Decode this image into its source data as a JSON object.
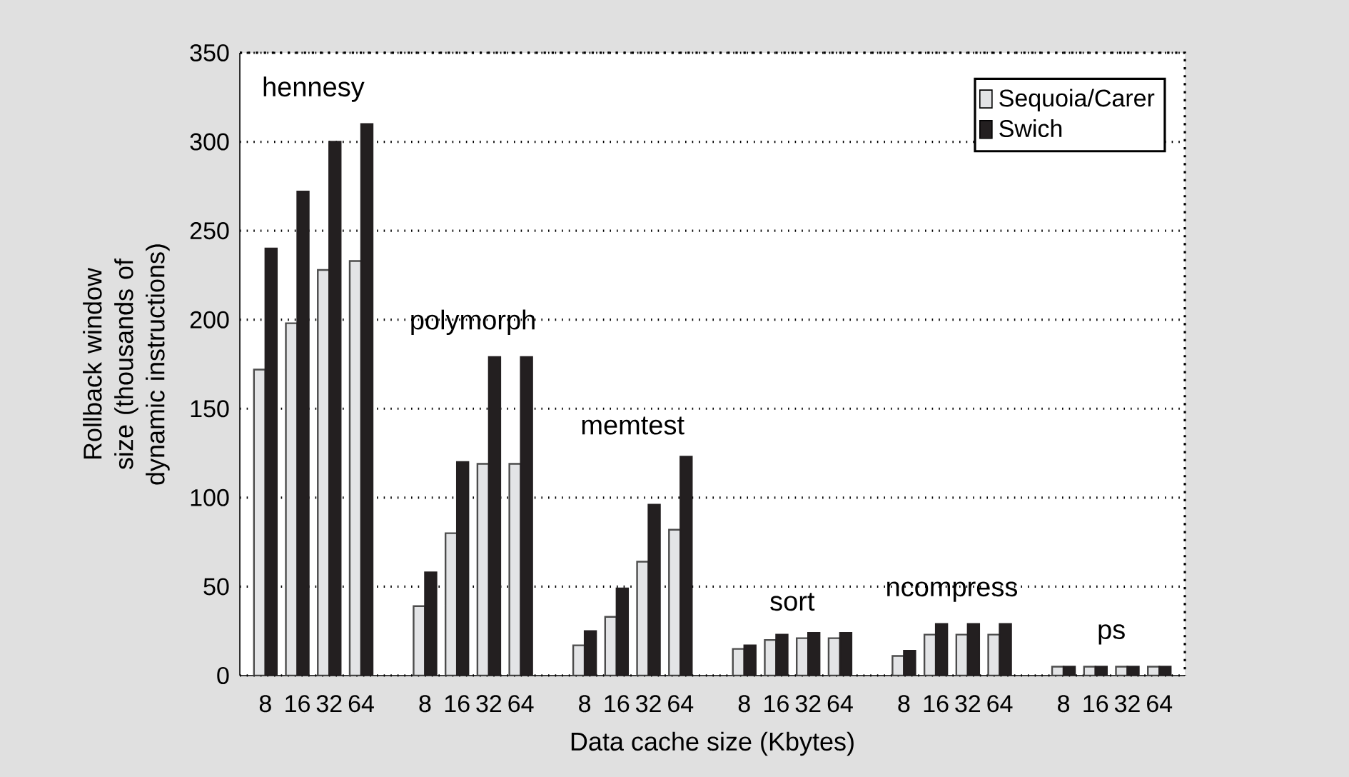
{
  "chart_data": {
    "type": "bar",
    "xlabel": "Data cache size (Kbytes)",
    "ylabel": "Rollback window size (thousands of dynamic instructions)",
    "categories": [
      "8",
      "16",
      "32",
      "64",
      null,
      "8",
      "16",
      "32",
      "64",
      null,
      "8",
      "16",
      "32",
      "64",
      null,
      "8",
      "16",
      "32",
      "64",
      null,
      "8",
      "16",
      "32",
      "64",
      null,
      "8",
      "16",
      "32",
      "64"
    ],
    "series": [
      {
        "name": "Sequoia/Carer",
        "color": "#e3e4e6",
        "values": [
          172,
          198,
          228,
          233,
          null,
          39,
          80,
          119,
          119,
          null,
          17,
          33,
          64,
          82,
          null,
          15,
          20,
          21,
          21,
          null,
          11,
          23,
          23,
          23,
          null,
          5,
          5,
          5,
          5
        ]
      },
      {
        "name": "Swich",
        "color": "#231f20",
        "values": [
          240,
          272,
          300,
          310,
          null,
          58,
          120,
          179,
          179,
          null,
          25,
          49,
          96,
          123,
          null,
          17,
          23,
          24,
          24,
          null,
          14,
          29,
          29,
          29,
          null,
          5,
          5,
          5,
          5
        ]
      }
    ],
    "annotations": [
      "hennesy",
      "polymorph",
      "memtest",
      "sort",
      "ncompress",
      "ps"
    ],
    "ylim": [
      0,
      350
    ],
    "yticks": [
      0,
      50,
      100,
      150,
      200,
      250,
      300,
      350
    ],
    "grid": "y",
    "legend": "top right"
  }
}
